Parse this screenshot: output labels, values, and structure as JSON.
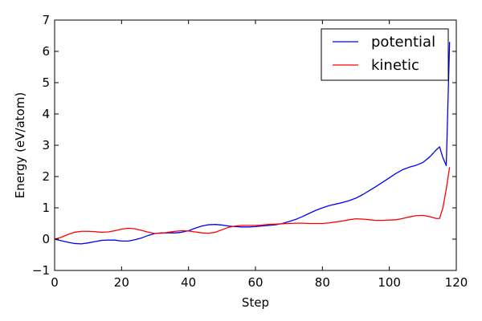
{
  "chart_data": {
    "type": "line",
    "xlabel": "Step",
    "ylabel": "Energy (eV/atom)",
    "xlim": [
      0,
      120
    ],
    "ylim": [
      -1,
      7
    ],
    "xticks": [
      0,
      20,
      40,
      60,
      80,
      100,
      120
    ],
    "yticks": [
      -1,
      0,
      1,
      2,
      3,
      4,
      5,
      6,
      7
    ],
    "xtick_labels": [
      "0",
      "20",
      "40",
      "60",
      "80",
      "100",
      "120"
    ],
    "ytick_labels": [
      "−1",
      "0",
      "1",
      "2",
      "3",
      "4",
      "5",
      "6",
      "7"
    ],
    "grid": false,
    "legend_position": "top-right",
    "series": [
      {
        "name": "potential",
        "color": "#0000ff",
        "x": [
          0,
          2,
          4,
          6,
          8,
          10,
          12,
          14,
          16,
          18,
          20,
          22,
          24,
          26,
          28,
          30,
          32,
          34,
          36,
          38,
          40,
          42,
          44,
          46,
          48,
          50,
          52,
          54,
          56,
          58,
          60,
          62,
          64,
          66,
          68,
          70,
          72,
          74,
          76,
          78,
          80,
          82,
          84,
          86,
          88,
          90,
          92,
          94,
          96,
          98,
          100,
          102,
          104,
          106,
          108,
          110,
          112,
          114,
          115,
          116,
          117,
          118
        ],
        "y": [
          0.0,
          -0.05,
          -0.1,
          -0.14,
          -0.15,
          -0.12,
          -0.08,
          -0.04,
          -0.03,
          -0.03,
          -0.06,
          -0.06,
          -0.02,
          0.04,
          0.12,
          0.18,
          0.2,
          0.2,
          0.2,
          0.22,
          0.27,
          0.35,
          0.42,
          0.46,
          0.47,
          0.45,
          0.42,
          0.4,
          0.39,
          0.39,
          0.4,
          0.42,
          0.44,
          0.46,
          0.5,
          0.56,
          0.63,
          0.72,
          0.82,
          0.92,
          1.0,
          1.07,
          1.12,
          1.17,
          1.23,
          1.31,
          1.42,
          1.55,
          1.68,
          1.82,
          1.96,
          2.1,
          2.22,
          2.3,
          2.36,
          2.45,
          2.62,
          2.85,
          2.95,
          2.6,
          2.35,
          6.3
        ]
      },
      {
        "name": "kinetic",
        "color": "#ff0000",
        "x": [
          0,
          2,
          4,
          6,
          8,
          10,
          12,
          14,
          16,
          18,
          20,
          22,
          24,
          26,
          28,
          30,
          32,
          34,
          36,
          38,
          40,
          42,
          44,
          46,
          48,
          50,
          52,
          54,
          56,
          58,
          60,
          62,
          64,
          66,
          68,
          70,
          72,
          74,
          76,
          78,
          80,
          82,
          84,
          86,
          88,
          90,
          92,
          94,
          96,
          98,
          100,
          102,
          104,
          106,
          108,
          110,
          112,
          114,
          115,
          116,
          117,
          118
        ],
        "y": [
          0.0,
          0.06,
          0.15,
          0.22,
          0.25,
          0.25,
          0.24,
          0.22,
          0.23,
          0.27,
          0.32,
          0.35,
          0.33,
          0.28,
          0.22,
          0.18,
          0.19,
          0.22,
          0.25,
          0.27,
          0.26,
          0.23,
          0.2,
          0.19,
          0.22,
          0.3,
          0.38,
          0.42,
          0.44,
          0.44,
          0.44,
          0.45,
          0.47,
          0.48,
          0.49,
          0.5,
          0.51,
          0.51,
          0.5,
          0.5,
          0.5,
          0.52,
          0.55,
          0.58,
          0.62,
          0.65,
          0.64,
          0.62,
          0.6,
          0.6,
          0.61,
          0.62,
          0.66,
          0.71,
          0.75,
          0.76,
          0.72,
          0.66,
          0.66,
          1.0,
          1.6,
          2.3
        ]
      }
    ]
  }
}
